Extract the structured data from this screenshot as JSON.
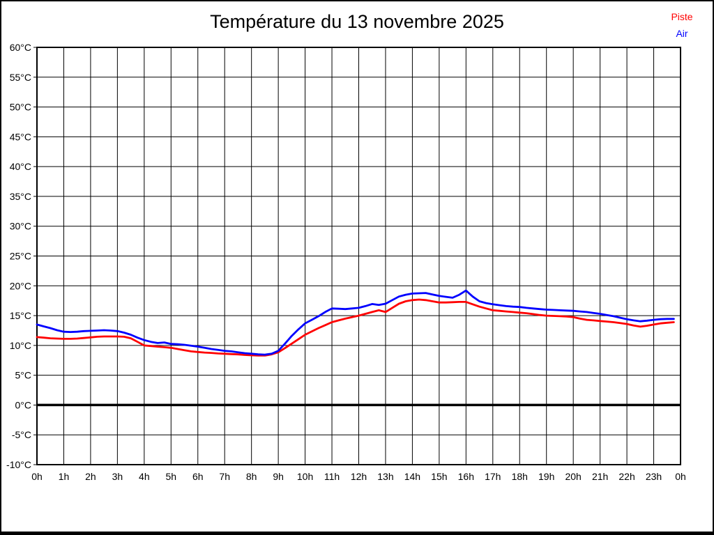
{
  "page": {
    "background": "#ffffff",
    "border_color": "#000000"
  },
  "chart_data": {
    "type": "line",
    "title": "Température du 13 novembre 2025",
    "grid": true,
    "x_axis": {
      "min": 0,
      "max": 24,
      "tick_step": 1,
      "unit": "h",
      "tick_labels": [
        "0h",
        "1h",
        "2h",
        "3h",
        "4h",
        "5h",
        "6h",
        "7h",
        "8h",
        "9h",
        "10h",
        "11h",
        "12h",
        "13h",
        "14h",
        "15h",
        "16h",
        "17h",
        "18h",
        "19h",
        "20h",
        "21h",
        "22h",
        "23h",
        "0h"
      ]
    },
    "y_axis": {
      "min": -10,
      "max": 60,
      "tick_step": 5,
      "unit": "°C",
      "zero_line_bold": true,
      "tick_labels": [
        "60°C",
        "55°C",
        "50°C",
        "45°C",
        "40°C",
        "35°C",
        "30°C",
        "25°C",
        "20°C",
        "15°C",
        "10°C",
        "5°C",
        "0°C",
        "-5°C",
        "-10°C"
      ]
    },
    "legend": {
      "position": "top-right",
      "entries": [
        {
          "label": "Piste",
          "color": "#ff0000"
        },
        {
          "label": "Air",
          "color": "#0000ff"
        }
      ]
    },
    "series": [
      {
        "name": "Piste",
        "color": "#ff0000",
        "points": [
          [
            0,
            11.4
          ],
          [
            0.25,
            11.3
          ],
          [
            0.5,
            11.2
          ],
          [
            0.75,
            11.15
          ],
          [
            1,
            11.1
          ],
          [
            1.25,
            11.1
          ],
          [
            1.5,
            11.15
          ],
          [
            1.75,
            11.25
          ],
          [
            2,
            11.35
          ],
          [
            2.25,
            11.45
          ],
          [
            2.5,
            11.5
          ],
          [
            2.75,
            11.5
          ],
          [
            3,
            11.5
          ],
          [
            3.25,
            11.45
          ],
          [
            3.5,
            11.2
          ],
          [
            3.75,
            10.6
          ],
          [
            4,
            10.0
          ],
          [
            4.25,
            9.9
          ],
          [
            4.5,
            9.8
          ],
          [
            4.75,
            9.7
          ],
          [
            5,
            9.6
          ],
          [
            5.25,
            9.4
          ],
          [
            5.5,
            9.2
          ],
          [
            5.75,
            9.0
          ],
          [
            6,
            8.9
          ],
          [
            6.25,
            8.8
          ],
          [
            6.5,
            8.75
          ],
          [
            6.75,
            8.65
          ],
          [
            7,
            8.6
          ],
          [
            7.25,
            8.55
          ],
          [
            7.5,
            8.5
          ],
          [
            7.75,
            8.4
          ],
          [
            8,
            8.35
          ],
          [
            8.25,
            8.3
          ],
          [
            8.5,
            8.3
          ],
          [
            8.75,
            8.5
          ],
          [
            9,
            8.85
          ],
          [
            9.25,
            9.55
          ],
          [
            9.5,
            10.3
          ],
          [
            9.75,
            11.05
          ],
          [
            10,
            11.8
          ],
          [
            10.25,
            12.35
          ],
          [
            10.5,
            12.9
          ],
          [
            10.75,
            13.4
          ],
          [
            11,
            13.9
          ],
          [
            11.25,
            14.2
          ],
          [
            11.5,
            14.5
          ],
          [
            11.75,
            14.75
          ],
          [
            12,
            15.0
          ],
          [
            12.25,
            15.3
          ],
          [
            12.5,
            15.6
          ],
          [
            12.75,
            15.9
          ],
          [
            13,
            15.6
          ],
          [
            13.25,
            16.3
          ],
          [
            13.5,
            17.0
          ],
          [
            13.75,
            17.4
          ],
          [
            14,
            17.6
          ],
          [
            14.25,
            17.7
          ],
          [
            14.5,
            17.6
          ],
          [
            14.75,
            17.4
          ],
          [
            15,
            17.2
          ],
          [
            15.25,
            17.2
          ],
          [
            15.5,
            17.25
          ],
          [
            15.75,
            17.3
          ],
          [
            16,
            17.3
          ],
          [
            16.25,
            16.9
          ],
          [
            16.5,
            16.5
          ],
          [
            16.75,
            16.2
          ],
          [
            17,
            15.9
          ],
          [
            17.25,
            15.8
          ],
          [
            17.5,
            15.7
          ],
          [
            17.75,
            15.6
          ],
          [
            18,
            15.5
          ],
          [
            18.25,
            15.4
          ],
          [
            18.5,
            15.25
          ],
          [
            18.75,
            15.1
          ],
          [
            19,
            15.0
          ],
          [
            19.25,
            14.95
          ],
          [
            19.5,
            14.9
          ],
          [
            19.75,
            14.85
          ],
          [
            20,
            14.75
          ],
          [
            20.25,
            14.5
          ],
          [
            20.5,
            14.3
          ],
          [
            20.75,
            14.2
          ],
          [
            21,
            14.1
          ],
          [
            21.25,
            14.0
          ],
          [
            21.5,
            13.9
          ],
          [
            21.75,
            13.75
          ],
          [
            22,
            13.6
          ],
          [
            22.25,
            13.35
          ],
          [
            22.5,
            13.15
          ],
          [
            22.75,
            13.3
          ],
          [
            23,
            13.5
          ],
          [
            23.25,
            13.7
          ],
          [
            23.5,
            13.8
          ],
          [
            23.75,
            13.9
          ]
        ]
      },
      {
        "name": "Air",
        "color": "#0000ff",
        "points": [
          [
            0,
            13.5
          ],
          [
            0.25,
            13.2
          ],
          [
            0.5,
            12.9
          ],
          [
            0.75,
            12.55
          ],
          [
            1,
            12.3
          ],
          [
            1.25,
            12.25
          ],
          [
            1.5,
            12.3
          ],
          [
            1.75,
            12.4
          ],
          [
            2,
            12.45
          ],
          [
            2.25,
            12.5
          ],
          [
            2.5,
            12.55
          ],
          [
            2.75,
            12.5
          ],
          [
            3,
            12.4
          ],
          [
            3.25,
            12.15
          ],
          [
            3.5,
            11.8
          ],
          [
            3.75,
            11.3
          ],
          [
            4,
            10.9
          ],
          [
            4.25,
            10.6
          ],
          [
            4.5,
            10.4
          ],
          [
            4.75,
            10.5
          ],
          [
            5,
            10.25
          ],
          [
            5.25,
            10.2
          ],
          [
            5.5,
            10.1
          ],
          [
            5.75,
            9.95
          ],
          [
            6,
            9.8
          ],
          [
            6.25,
            9.6
          ],
          [
            6.5,
            9.4
          ],
          [
            6.75,
            9.25
          ],
          [
            7,
            9.1
          ],
          [
            7.25,
            9.0
          ],
          [
            7.5,
            8.85
          ],
          [
            7.75,
            8.7
          ],
          [
            8,
            8.6
          ],
          [
            8.25,
            8.5
          ],
          [
            8.5,
            8.45
          ],
          [
            8.75,
            8.6
          ],
          [
            9,
            9.1
          ],
          [
            9.25,
            10.3
          ],
          [
            9.5,
            11.6
          ],
          [
            9.75,
            12.7
          ],
          [
            10,
            13.7
          ],
          [
            10.25,
            14.3
          ],
          [
            10.5,
            14.9
          ],
          [
            10.75,
            15.6
          ],
          [
            11,
            16.2
          ],
          [
            11.25,
            16.15
          ],
          [
            11.5,
            16.1
          ],
          [
            11.75,
            16.2
          ],
          [
            12,
            16.3
          ],
          [
            12.25,
            16.6
          ],
          [
            12.5,
            16.95
          ],
          [
            12.75,
            16.8
          ],
          [
            13,
            17.0
          ],
          [
            13.25,
            17.6
          ],
          [
            13.5,
            18.2
          ],
          [
            13.75,
            18.5
          ],
          [
            14,
            18.7
          ],
          [
            14.25,
            18.75
          ],
          [
            14.5,
            18.8
          ],
          [
            14.75,
            18.55
          ],
          [
            15,
            18.3
          ],
          [
            15.25,
            18.15
          ],
          [
            15.5,
            18.0
          ],
          [
            15.75,
            18.5
          ],
          [
            16,
            19.2
          ],
          [
            16.25,
            18.2
          ],
          [
            16.5,
            17.4
          ],
          [
            16.75,
            17.1
          ],
          [
            17,
            16.9
          ],
          [
            17.25,
            16.75
          ],
          [
            17.5,
            16.6
          ],
          [
            17.75,
            16.5
          ],
          [
            18,
            16.45
          ],
          [
            18.25,
            16.3
          ],
          [
            18.5,
            16.2
          ],
          [
            18.75,
            16.1
          ],
          [
            19,
            16.0
          ],
          [
            19.25,
            15.95
          ],
          [
            19.5,
            15.9
          ],
          [
            19.75,
            15.85
          ],
          [
            20,
            15.8
          ],
          [
            20.25,
            15.7
          ],
          [
            20.5,
            15.6
          ],
          [
            20.75,
            15.45
          ],
          [
            21,
            15.3
          ],
          [
            21.25,
            15.1
          ],
          [
            21.5,
            14.9
          ],
          [
            21.75,
            14.65
          ],
          [
            22,
            14.4
          ],
          [
            22.25,
            14.2
          ],
          [
            22.5,
            14.05
          ],
          [
            22.75,
            14.15
          ],
          [
            23,
            14.3
          ],
          [
            23.25,
            14.4
          ],
          [
            23.5,
            14.45
          ],
          [
            23.75,
            14.45
          ]
        ]
      }
    ]
  }
}
